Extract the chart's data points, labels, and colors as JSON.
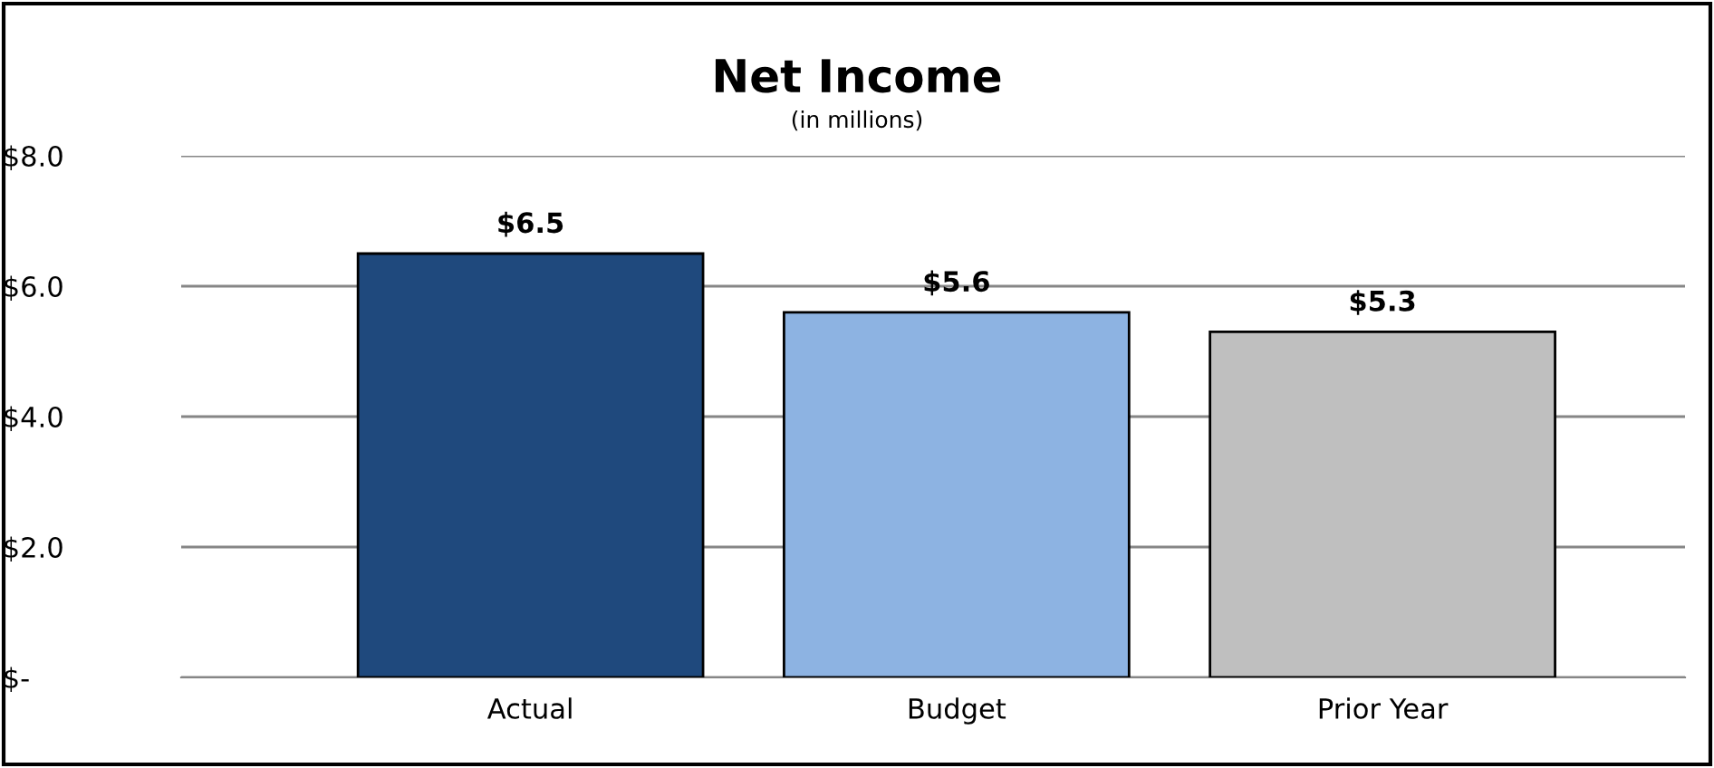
{
  "chart_data": {
    "type": "bar",
    "title": "Net Income",
    "subtitle": "(in millions)",
    "categories": [
      "Actual",
      "Budget",
      "Prior Year"
    ],
    "values": [
      6.5,
      5.6,
      5.3
    ],
    "colors": [
      "#1f497d",
      "#8db3e2",
      "#bfbfbf"
    ],
    "value_labels": [
      "$6.5",
      "$5.6",
      "$5.3"
    ],
    "ylim": [
      0,
      8
    ],
    "yticks": [
      {
        "value": 0,
        "label": "$-"
      },
      {
        "value": 2,
        "label": "$2.0"
      },
      {
        "value": 4,
        "label": "$4.0"
      },
      {
        "value": 6,
        "label": "$6.0"
      },
      {
        "value": 8,
        "label": "$8.0"
      }
    ],
    "grid": "y"
  }
}
